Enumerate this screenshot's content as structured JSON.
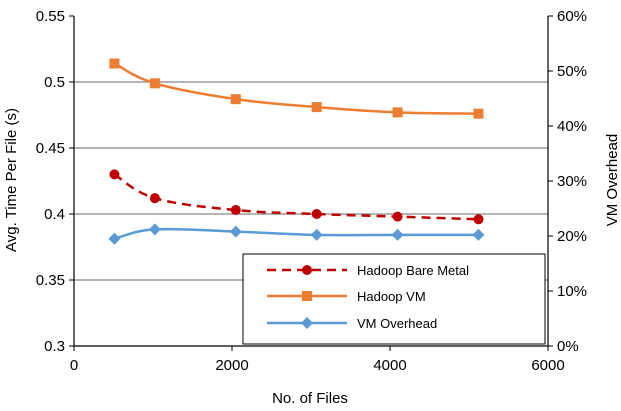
{
  "chart_data": {
    "type": "line",
    "x": [
      512,
      1024,
      2048,
      3072,
      4096,
      5120
    ],
    "xlabel": "No. of Files",
    "ylabel": "Avg. Time Per File (s)",
    "y2label": "VM Overhead",
    "xlim": [
      0,
      6000
    ],
    "ylim": [
      0.3,
      0.55
    ],
    "y2lim": [
      0,
      0.6
    ],
    "x_ticks": [
      0,
      2000,
      4000,
      6000
    ],
    "x_tick_labels": [
      "0",
      "2000",
      "4000",
      "6000"
    ],
    "y_ticks": [
      0.3,
      0.35,
      0.4,
      0.45,
      0.5,
      0.55
    ],
    "y_tick_labels": [
      "0.3",
      "0.35",
      "0.4",
      "0.45",
      "0.5",
      "0.55"
    ],
    "y2_ticks": [
      0,
      0.1,
      0.2,
      0.3,
      0.4,
      0.5,
      0.6
    ],
    "y2_tick_labels": [
      "0%",
      "10%",
      "20%",
      "30%",
      "40%",
      "50%",
      "60%"
    ],
    "grid": true,
    "legend_position": "bottom-right",
    "series": [
      {
        "name": "Hadoop Bare Metal",
        "axis": "left",
        "values": [
          0.43,
          0.412,
          0.403,
          0.4,
          0.398,
          0.396
        ],
        "color": "#C00000",
        "line": "dashed",
        "marker": "circle"
      },
      {
        "name": "Hadoop VM",
        "axis": "left",
        "values": [
          0.514,
          0.499,
          0.487,
          0.481,
          0.477,
          0.476
        ],
        "color": "#ED7D31",
        "line": "solid",
        "marker": "square"
      },
      {
        "name": "VM Overhead",
        "axis": "right",
        "values": [
          0.195,
          0.212,
          0.208,
          0.202,
          0.202,
          0.202
        ],
        "color": "#5B9BD5",
        "line": "solid",
        "marker": "diamond"
      }
    ]
  }
}
